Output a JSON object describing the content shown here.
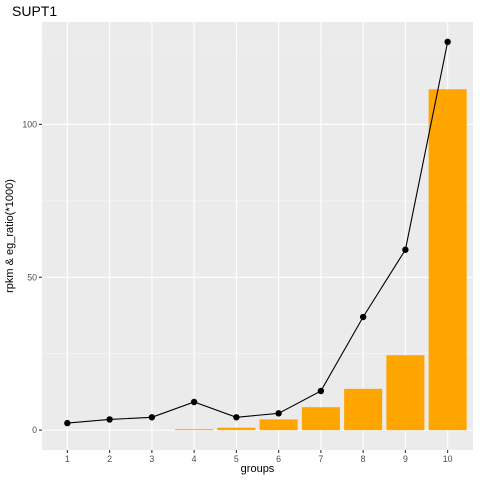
{
  "chart_data": {
    "type": "bar",
    "title": "SUPT1",
    "xlabel": "groups",
    "ylabel": "rpkm & eg_ratio(*1000)",
    "categories": [
      "1",
      "2",
      "3",
      "4",
      "5",
      "6",
      "7",
      "8",
      "9",
      "10"
    ],
    "ylim": [
      -6.5,
      133.5
    ],
    "yticks": [
      0,
      50,
      100
    ],
    "grid": true,
    "series": [
      {
        "type": "bar",
        "color": "#FFA500",
        "values": [
          0,
          0,
          0,
          0.3,
          0.8,
          3.5,
          7.5,
          13.5,
          24.5,
          111.5
        ]
      },
      {
        "type": "line",
        "color": "#000000",
        "values": [
          2.3,
          3.5,
          4.2,
          9.2,
          4.2,
          5.5,
          12.8,
          37.0,
          59.0,
          127.0
        ]
      }
    ]
  }
}
